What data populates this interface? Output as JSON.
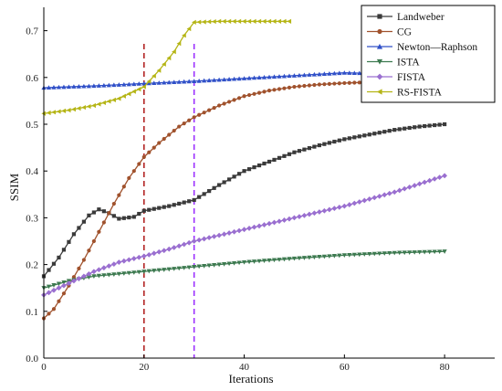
{
  "chart_data": {
    "type": "line",
    "xlabel": "Iterations",
    "ylabel": "SSIM",
    "xlim": [
      0,
      90
    ],
    "ylim": [
      0,
      0.75
    ],
    "x_ticks": [
      0,
      20,
      40,
      60,
      80
    ],
    "x_tick_labels": [
      "0",
      "20",
      "40",
      "60",
      "80"
    ],
    "y_ticks": [
      0.0,
      0.1,
      0.2,
      0.3,
      0.4,
      0.5,
      0.6,
      0.7
    ],
    "y_tick_labels": [
      "0.0",
      "0.1",
      "0.2",
      "0.3",
      "0.4",
      "0.5",
      "0.6",
      "0.7"
    ],
    "grid": false,
    "legend_position": "top-right",
    "vertical_reference_lines": [
      {
        "x": 20,
        "color": "#b22222",
        "style": "dashed"
      },
      {
        "x": 30,
        "color": "#9b30ff",
        "style": "dashed"
      }
    ],
    "series": [
      {
        "name": "Landweber",
        "color": "#3a3a3a",
        "marker": "square",
        "points": [
          [
            0,
            0.175
          ],
          [
            3,
            0.215
          ],
          [
            6,
            0.265
          ],
          [
            9,
            0.305
          ],
          [
            11,
            0.318
          ],
          [
            13,
            0.31
          ],
          [
            15,
            0.298
          ],
          [
            18,
            0.302
          ],
          [
            20,
            0.315
          ],
          [
            25,
            0.325
          ],
          [
            30,
            0.338
          ],
          [
            35,
            0.37
          ],
          [
            40,
            0.4
          ],
          [
            45,
            0.42
          ],
          [
            50,
            0.44
          ],
          [
            55,
            0.455
          ],
          [
            60,
            0.468
          ],
          [
            65,
            0.478
          ],
          [
            70,
            0.488
          ],
          [
            75,
            0.495
          ],
          [
            80,
            0.5
          ]
        ]
      },
      {
        "name": "CG",
        "color": "#a0522d",
        "marker": "circle",
        "points": [
          [
            0,
            0.085
          ],
          [
            2,
            0.105
          ],
          [
            5,
            0.155
          ],
          [
            8,
            0.21
          ],
          [
            11,
            0.27
          ],
          [
            14,
            0.33
          ],
          [
            17,
            0.385
          ],
          [
            20,
            0.43
          ],
          [
            23,
            0.46
          ],
          [
            27,
            0.495
          ],
          [
            30,
            0.515
          ],
          [
            35,
            0.54
          ],
          [
            40,
            0.56
          ],
          [
            45,
            0.572
          ],
          [
            50,
            0.58
          ],
          [
            55,
            0.585
          ],
          [
            60,
            0.588
          ],
          [
            65,
            0.59
          ],
          [
            70,
            0.59
          ],
          [
            75,
            0.589
          ],
          [
            78,
            0.588
          ]
        ]
      },
      {
        "name": "Newton—Raphson",
        "color": "#3050c8",
        "marker": "triangle-up",
        "points": [
          [
            0,
            0.578
          ],
          [
            10,
            0.582
          ],
          [
            20,
            0.587
          ],
          [
            30,
            0.592
          ],
          [
            40,
            0.598
          ],
          [
            50,
            0.604
          ],
          [
            60,
            0.61
          ],
          [
            68,
            0.608
          ]
        ]
      },
      {
        "name": "ISTA",
        "color": "#3d7a50",
        "marker": "triangle-down",
        "points": [
          [
            0,
            0.15
          ],
          [
            5,
            0.165
          ],
          [
            10,
            0.175
          ],
          [
            20,
            0.185
          ],
          [
            30,
            0.195
          ],
          [
            40,
            0.205
          ],
          [
            50,
            0.213
          ],
          [
            60,
            0.22
          ],
          [
            70,
            0.225
          ],
          [
            80,
            0.228
          ]
        ]
      },
      {
        "name": "FISTA",
        "color": "#9a6fd0",
        "marker": "diamond",
        "points": [
          [
            0,
            0.135
          ],
          [
            5,
            0.16
          ],
          [
            10,
            0.185
          ],
          [
            15,
            0.205
          ],
          [
            20,
            0.218
          ],
          [
            25,
            0.233
          ],
          [
            30,
            0.25
          ],
          [
            40,
            0.275
          ],
          [
            50,
            0.3
          ],
          [
            60,
            0.325
          ],
          [
            70,
            0.355
          ],
          [
            80,
            0.39
          ]
        ]
      },
      {
        "name": "RS-FISTA",
        "color": "#b5b516",
        "marker": "triangle-left",
        "points": [
          [
            0,
            0.523
          ],
          [
            5,
            0.53
          ],
          [
            10,
            0.54
          ],
          [
            15,
            0.555
          ],
          [
            20,
            0.58
          ],
          [
            23,
            0.615
          ],
          [
            26,
            0.655
          ],
          [
            28,
            0.69
          ],
          [
            30,
            0.718
          ],
          [
            35,
            0.72
          ],
          [
            40,
            0.72
          ],
          [
            45,
            0.72
          ],
          [
            49,
            0.72
          ]
        ]
      }
    ]
  }
}
